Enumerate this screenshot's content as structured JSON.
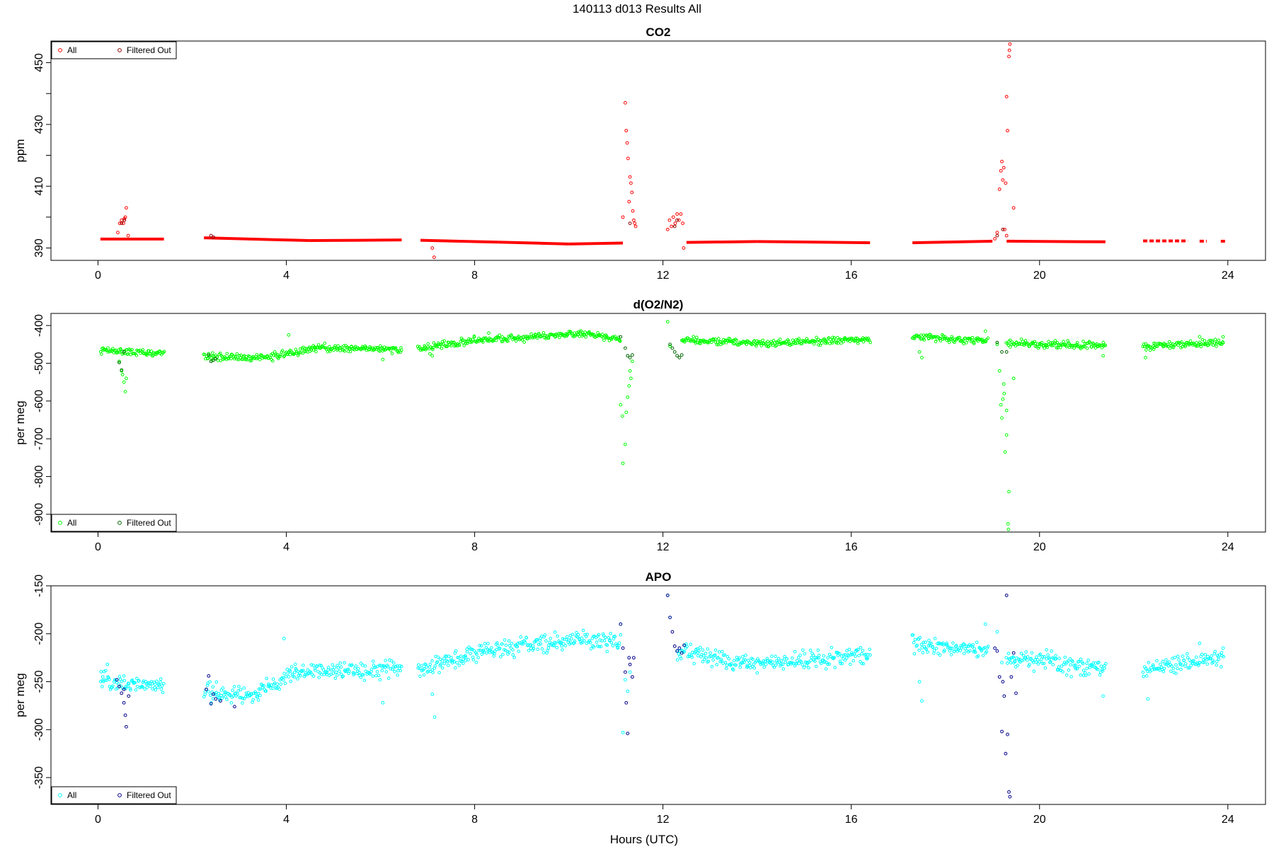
{
  "figure": {
    "suptitle": "140113   d013   Results All",
    "xlabel": "Hours (UTC)"
  },
  "legend": {
    "all_label": "All",
    "filtered_label": "Filtered Out"
  },
  "chart_data": [
    {
      "type": "scatter",
      "title": "CO2",
      "xlabel": "",
      "ylabel": "ppm",
      "xlim": [
        -1,
        24.8
      ],
      "ylim": [
        386,
        457
      ],
      "xticks": [
        0,
        4,
        8,
        12,
        16,
        20,
        24
      ],
      "yticks": [
        390,
        410,
        430,
        450
      ],
      "ytick_minor": [
        400,
        420,
        440
      ],
      "legend_position": "top-left",
      "grid": false,
      "colors": {
        "all": "#ff0000",
        "filtered": "#8b0000"
      },
      "baseline_segments": [
        {
          "x0": 0.05,
          "x1": 1.4,
          "y0": 392.9,
          "y1": 392.9
        },
        {
          "x0": 2.25,
          "x1": 4.5,
          "y0": 393.3,
          "y1": 392.4
        },
        {
          "x0": 4.5,
          "x1": 6.45,
          "y0": 392.4,
          "y1": 392.6
        },
        {
          "x0": 6.85,
          "x1": 8.5,
          "y0": 392.5,
          "y1": 391.9
        },
        {
          "x0": 8.5,
          "x1": 10.0,
          "y0": 391.9,
          "y1": 391.3
        },
        {
          "x0": 10.0,
          "x1": 11.15,
          "y0": 391.3,
          "y1": 391.6
        },
        {
          "x0": 12.5,
          "x1": 14.0,
          "y0": 391.8,
          "y1": 392.1
        },
        {
          "x0": 14.0,
          "x1": 16.4,
          "y0": 392.1,
          "y1": 391.7
        },
        {
          "x0": 17.3,
          "x1": 19.0,
          "y0": 391.7,
          "y1": 392.2
        },
        {
          "x0": 19.3,
          "x1": 21.4,
          "y0": 392.2,
          "y1": 392.0
        }
      ],
      "baseline_dashes": [
        {
          "x0": 22.2,
          "x1": 23.15,
          "y": 392.3
        },
        {
          "x0": 23.4,
          "x1": 23.55,
          "y": 392.2
        },
        {
          "x0": 23.85,
          "x1": 23.95,
          "y": 392.2
        }
      ],
      "points_all": [
        [
          0.42,
          395
        ],
        [
          0.46,
          398
        ],
        [
          0.5,
          399
        ],
        [
          0.54,
          398
        ],
        [
          0.56,
          399.5
        ],
        [
          0.58,
          400
        ],
        [
          0.6,
          403
        ],
        [
          0.64,
          394
        ],
        [
          7.1,
          390
        ],
        [
          7.14,
          387
        ],
        [
          11.15,
          400
        ],
        [
          11.2,
          437
        ],
        [
          11.22,
          428
        ],
        [
          11.24,
          424
        ],
        [
          11.26,
          419
        ],
        [
          11.28,
          405
        ],
        [
          11.3,
          413
        ],
        [
          11.32,
          411
        ],
        [
          11.34,
          408
        ],
        [
          11.36,
          402
        ],
        [
          11.38,
          399
        ],
        [
          11.4,
          398
        ],
        [
          11.42,
          397
        ],
        [
          12.1,
          396
        ],
        [
          12.14,
          399
        ],
        [
          12.18,
          397
        ],
        [
          12.22,
          400
        ],
        [
          12.26,
          398
        ],
        [
          12.3,
          401
        ],
        [
          12.34,
          399
        ],
        [
          12.38,
          401
        ],
        [
          12.42,
          398
        ],
        [
          12.44,
          390
        ],
        [
          19.05,
          393
        ],
        [
          19.1,
          395
        ],
        [
          19.15,
          409
        ],
        [
          19.18,
          415
        ],
        [
          19.2,
          418
        ],
        [
          19.22,
          412
        ],
        [
          19.24,
          416
        ],
        [
          19.26,
          396
        ],
        [
          19.28,
          411
        ],
        [
          19.3,
          394
        ],
        [
          19.3,
          439
        ],
        [
          19.32,
          428
        ],
        [
          19.35,
          452
        ],
        [
          19.36,
          454
        ],
        [
          19.37,
          456
        ],
        [
          19.45,
          403
        ]
      ],
      "points_filtered": [
        [
          0.5,
          398
        ],
        [
          0.56,
          399
        ],
        [
          2.4,
          394
        ],
        [
          2.45,
          393.5
        ],
        [
          11.3,
          398
        ],
        [
          12.25,
          397
        ],
        [
          12.3,
          399
        ],
        [
          19.1,
          394
        ],
        [
          19.22,
          396
        ]
      ]
    },
    {
      "type": "scatter",
      "title": "d(O2/N2)",
      "xlabel": "",
      "ylabel": "per meg",
      "xlim": [
        -1,
        24.8
      ],
      "ylim": [
        -947,
        -368
      ],
      "xticks": [
        0,
        4,
        8,
        12,
        16,
        20,
        24
      ],
      "yticks": [
        -400,
        -500,
        -600,
        -700,
        -800,
        -900
      ],
      "legend_position": "bottom-left",
      "grid": false,
      "colors": {
        "all": "#00ff00",
        "filtered": "#006400"
      },
      "trend": [
        {
          "x0": 0.05,
          "x1": 1.4,
          "y0": -466,
          "y1": -475
        },
        {
          "x0": 2.25,
          "x1": 3.6,
          "y0": -482,
          "y1": -485
        },
        {
          "x0": 3.6,
          "x1": 4.6,
          "y0": -485,
          "y1": -460
        },
        {
          "x0": 4.6,
          "x1": 6.45,
          "y0": -460,
          "y1": -462
        },
        {
          "x0": 6.8,
          "x1": 8.0,
          "y0": -462,
          "y1": -440
        },
        {
          "x0": 8.0,
          "x1": 10.3,
          "y0": -440,
          "y1": -420
        },
        {
          "x0": 10.3,
          "x1": 11.1,
          "y0": -420,
          "y1": -435
        },
        {
          "x0": 12.4,
          "x1": 14.0,
          "y0": -437,
          "y1": -447
        },
        {
          "x0": 14.0,
          "x1": 16.4,
          "y0": -447,
          "y1": -437
        },
        {
          "x0": 17.3,
          "x1": 18.9,
          "y0": -430,
          "y1": -440
        },
        {
          "x0": 19.3,
          "x1": 21.4,
          "y0": -448,
          "y1": -455
        },
        {
          "x0": 22.2,
          "x1": 23.9,
          "y0": -456,
          "y1": -445
        }
      ],
      "points_all": [
        [
          0.45,
          -495
        ],
        [
          0.5,
          -520
        ],
        [
          0.52,
          -530
        ],
        [
          0.55,
          -550
        ],
        [
          0.58,
          -575
        ],
        [
          0.6,
          -540
        ],
        [
          4.05,
          -425
        ],
        [
          6.05,
          -490
        ],
        [
          7.05,
          -475
        ],
        [
          7.1,
          -480
        ],
        [
          8.3,
          -420
        ],
        [
          11.1,
          -610
        ],
        [
          11.14,
          -640
        ],
        [
          11.15,
          -765
        ],
        [
          11.2,
          -715
        ],
        [
          11.22,
          -630
        ],
        [
          11.25,
          -590
        ],
        [
          11.28,
          -560
        ],
        [
          11.3,
          -520
        ],
        [
          11.32,
          -540
        ],
        [
          11.35,
          -495
        ],
        [
          12.1,
          -390
        ],
        [
          12.15,
          -455
        ],
        [
          17.45,
          -470
        ],
        [
          17.5,
          -485
        ],
        [
          18.85,
          -415
        ],
        [
          19.1,
          -450
        ],
        [
          19.15,
          -520
        ],
        [
          19.18,
          -610
        ],
        [
          19.2,
          -645
        ],
        [
          19.22,
          -595
        ],
        [
          19.24,
          -555
        ],
        [
          19.25,
          -580
        ],
        [
          19.27,
          -735
        ],
        [
          19.3,
          -690
        ],
        [
          19.3,
          -625
        ],
        [
          19.33,
          -925
        ],
        [
          19.34,
          -940
        ],
        [
          19.35,
          -840
        ],
        [
          19.45,
          -540
        ],
        [
          21.35,
          -480
        ],
        [
          22.25,
          -485
        ],
        [
          23.4,
          -430
        ],
        [
          23.9,
          -430
        ]
      ],
      "points_filtered": [
        [
          0.45,
          -498
        ],
        [
          0.5,
          -518
        ],
        [
          0.55,
          -470
        ],
        [
          2.35,
          -478
        ],
        [
          2.4,
          -495
        ],
        [
          2.45,
          -492
        ],
        [
          2.5,
          -488
        ],
        [
          11.1,
          -430
        ],
        [
          11.2,
          -460
        ],
        [
          11.25,
          -480
        ],
        [
          11.3,
          -485
        ],
        [
          11.35,
          -478
        ],
        [
          12.15,
          -450
        ],
        [
          12.2,
          -460
        ],
        [
          12.25,
          -470
        ],
        [
          12.3,
          -480
        ],
        [
          12.35,
          -485
        ],
        [
          12.4,
          -478
        ],
        [
          19.1,
          -445
        ],
        [
          19.2,
          -470
        ],
        [
          19.3,
          -470
        ]
      ]
    },
    {
      "type": "scatter",
      "title": "APO",
      "xlabel": "Hours (UTC)",
      "ylabel": "per meg",
      "xlim": [
        -1,
        24.8
      ],
      "ylim": [
        -378,
        -150
      ],
      "xticks": [
        0,
        4,
        8,
        12,
        16,
        20,
        24
      ],
      "yticks": [
        -150,
        -200,
        -250,
        -300,
        -350
      ],
      "legend_position": "bottom-left",
      "grid": false,
      "colors": {
        "all": "#00ffff",
        "filtered": "#00008b"
      },
      "trend": [
        {
          "x0": 0.05,
          "x1": 1.4,
          "y0": -250,
          "y1": -255
        },
        {
          "x0": 2.25,
          "x1": 3.4,
          "y0": -260,
          "y1": -265
        },
        {
          "x0": 3.4,
          "x1": 4.2,
          "y0": -262,
          "y1": -240
        },
        {
          "x0": 4.2,
          "x1": 6.45,
          "y0": -240,
          "y1": -237
        },
        {
          "x0": 6.8,
          "x1": 7.8,
          "y0": -238,
          "y1": -225
        },
        {
          "x0": 7.8,
          "x1": 10.5,
          "y0": -220,
          "y1": -205
        },
        {
          "x0": 10.5,
          "x1": 11.1,
          "y0": -205,
          "y1": -210
        },
        {
          "x0": 12.3,
          "x1": 13.8,
          "y0": -218,
          "y1": -232
        },
        {
          "x0": 13.8,
          "x1": 16.4,
          "y0": -232,
          "y1": -222
        },
        {
          "x0": 17.3,
          "x1": 18.9,
          "y0": -210,
          "y1": -218
        },
        {
          "x0": 19.3,
          "x1": 21.4,
          "y0": -225,
          "y1": -235
        },
        {
          "x0": 22.2,
          "x1": 23.9,
          "y0": -238,
          "y1": -225
        }
      ],
      "points_all": [
        [
          0.1,
          -245
        ],
        [
          0.2,
          -232
        ],
        [
          3.95,
          -205
        ],
        [
          6.05,
          -272
        ],
        [
          7.1,
          -263
        ],
        [
          7.15,
          -287
        ],
        [
          11.1,
          -190
        ],
        [
          11.15,
          -303
        ],
        [
          11.2,
          -248
        ],
        [
          11.25,
          -260
        ],
        [
          11.3,
          -240
        ],
        [
          12.1,
          -160
        ],
        [
          12.15,
          -183
        ],
        [
          17.45,
          -250
        ],
        [
          17.5,
          -270
        ],
        [
          18.85,
          -190
        ],
        [
          19.1,
          -198
        ],
        [
          19.2,
          -230
        ],
        [
          21.35,
          -265
        ],
        [
          22.3,
          -268
        ],
        [
          23.4,
          -210
        ],
        [
          23.9,
          -215
        ]
      ],
      "points_filtered": [
        [
          0.4,
          -248
        ],
        [
          0.45,
          -255
        ],
        [
          0.5,
          -262
        ],
        [
          0.55,
          -258
        ],
        [
          0.55,
          -272
        ],
        [
          0.58,
          -285
        ],
        [
          0.6,
          -297
        ],
        [
          0.65,
          -265
        ],
        [
          2.3,
          -258
        ],
        [
          2.35,
          -244
        ],
        [
          2.4,
          -273
        ],
        [
          2.45,
          -263
        ],
        [
          2.5,
          -268
        ],
        [
          2.6,
          -270
        ],
        [
          2.9,
          -276
        ],
        [
          11.1,
          -190
        ],
        [
          11.15,
          -215
        ],
        [
          11.2,
          -240
        ],
        [
          11.22,
          -272
        ],
        [
          11.25,
          -304
        ],
        [
          11.28,
          -225
        ],
        [
          11.3,
          -232
        ],
        [
          11.35,
          -245
        ],
        [
          11.38,
          -225
        ],
        [
          12.1,
          -160
        ],
        [
          12.15,
          -183
        ],
        [
          12.2,
          -198
        ],
        [
          12.25,
          -213
        ],
        [
          12.3,
          -218
        ],
        [
          12.35,
          -215
        ],
        [
          12.4,
          -220
        ],
        [
          12.45,
          -212
        ],
        [
          19.05,
          -215
        ],
        [
          19.1,
          -218
        ],
        [
          19.15,
          -245
        ],
        [
          19.2,
          -302
        ],
        [
          19.22,
          -250
        ],
        [
          19.25,
          -265
        ],
        [
          19.28,
          -325
        ],
        [
          19.3,
          -160
        ],
        [
          19.32,
          -305
        ],
        [
          19.35,
          -365
        ],
        [
          19.37,
          -370
        ],
        [
          19.4,
          -245
        ],
        [
          19.45,
          -220
        ],
        [
          19.5,
          -262
        ]
      ]
    }
  ]
}
